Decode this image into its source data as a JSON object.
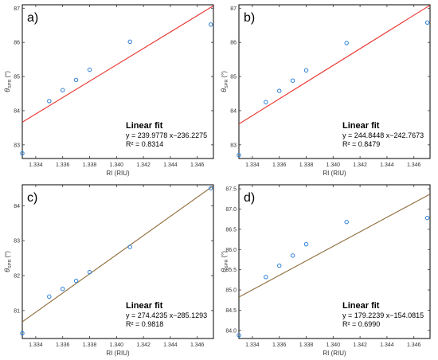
{
  "colors": {
    "point": "#2a7fd4",
    "frame": "#000000",
    "tick": "#333333"
  },
  "chart_data": [
    {
      "type": "scatter",
      "panel_label": "a)",
      "xlabel": "RI (RIU)",
      "ylabel": {
        "theta": "θ",
        "sub": "SPR",
        "unit": "(°)"
      },
      "xlim": [
        1.333,
        1.3472
      ],
      "ylim": [
        82.6,
        87.1
      ],
      "xticks": [
        "1.334",
        "1.336",
        "1.338",
        "1.340",
        "1.342",
        "1.344",
        "1.346"
      ],
      "xtick_values": [
        1.334,
        1.336,
        1.338,
        1.34,
        1.342,
        1.344,
        1.346
      ],
      "yticks": [
        "83",
        "84",
        "85",
        "86",
        "87"
      ],
      "ytick_values": [
        83,
        84,
        85,
        86,
        87
      ],
      "x": [
        1.333,
        1.335,
        1.336,
        1.337,
        1.338,
        1.341,
        1.347
      ],
      "y": [
        82.75,
        84.28,
        84.6,
        84.9,
        85.2,
        86.02,
        86.52
      ],
      "fit": {
        "slope": 239.9778,
        "intercept": -236.2275,
        "color": "#e8322c"
      },
      "legend_title": "Linear fit",
      "equation": "y = 239.9778 x−236.2275",
      "r2": "R² = 0.8314"
    },
    {
      "type": "scatter",
      "panel_label": "b)",
      "xlabel": "RI (RIU)",
      "ylabel": {
        "theta": "θ",
        "sub": "SPR",
        "unit": "(°)"
      },
      "xlim": [
        1.333,
        1.3472
      ],
      "ylim": [
        82.6,
        87.1
      ],
      "xticks": [
        "1.334",
        "1.336",
        "1.338",
        "1.340",
        "1.342",
        "1.344",
        "1.346"
      ],
      "xtick_values": [
        1.334,
        1.336,
        1.338,
        1.34,
        1.342,
        1.344,
        1.346
      ],
      "yticks": [
        "83",
        "84",
        "85",
        "86",
        "87"
      ],
      "ytick_values": [
        83,
        84,
        85,
        86,
        87
      ],
      "x": [
        1.333,
        1.335,
        1.336,
        1.337,
        1.338,
        1.341,
        1.347
      ],
      "y": [
        82.7,
        84.25,
        84.58,
        84.88,
        85.18,
        85.98,
        86.58
      ],
      "fit": {
        "slope": 244.8448,
        "intercept": -242.7673,
        "color": "#e8322c"
      },
      "legend_title": "Linear fit",
      "equation": "y = 244.8448 x−242.7673",
      "r2": "R² = 0.8479"
    },
    {
      "type": "scatter",
      "panel_label": "c)",
      "xlabel": "RI (RIU)",
      "ylabel": {
        "theta": "θ",
        "sub": "SPR",
        "unit": "(°)"
      },
      "xlim": [
        1.333,
        1.3472
      ],
      "ylim": [
        80.2,
        84.6
      ],
      "xticks": [
        "1.334",
        "1.336",
        "1.338",
        "1.340",
        "1.342",
        "1.344",
        "1.346"
      ],
      "xtick_values": [
        1.334,
        1.336,
        1.338,
        1.34,
        1.342,
        1.344,
        1.346
      ],
      "yticks": [
        "81",
        "82",
        "83",
        "84"
      ],
      "ytick_values": [
        81,
        82,
        83,
        84
      ],
      "x": [
        1.333,
        1.335,
        1.336,
        1.337,
        1.338,
        1.341,
        1.347
      ],
      "y": [
        80.35,
        81.4,
        81.62,
        81.85,
        82.1,
        82.82,
        84.5
      ],
      "fit": {
        "slope": 274.4235,
        "intercept": -285.1293,
        "color": "#8f6b3a"
      },
      "legend_title": "Linear fit",
      "equation": "y = 274.4235 x−285.1293",
      "r2": "R² = 0.9818"
    },
    {
      "type": "scatter",
      "panel_label": "d)",
      "xlabel": "RI (RIU)",
      "ylabel": {
        "theta": "θ",
        "sub": "SPR",
        "unit": "(°)"
      },
      "xlim": [
        1.333,
        1.3472
      ],
      "ylim": [
        83.8,
        87.6
      ],
      "xticks": [
        "1.334",
        "1.336",
        "1.338",
        "1.340",
        "1.342",
        "1.344",
        "1.346"
      ],
      "xtick_values": [
        1.334,
        1.336,
        1.338,
        1.34,
        1.342,
        1.344,
        1.346
      ],
      "yticks": [
        "84.0",
        "84.5",
        "85.0",
        "85.5",
        "86.0",
        "86.5",
        "87.0",
        "87.5"
      ],
      "ytick_values": [
        84.0,
        84.5,
        85.0,
        85.5,
        86.0,
        86.5,
        87.0,
        87.5
      ],
      "x": [
        1.333,
        1.335,
        1.336,
        1.337,
        1.338,
        1.341,
        1.347
      ],
      "y": [
        83.88,
        85.32,
        85.6,
        85.85,
        86.13,
        86.68,
        86.78
      ],
      "fit": {
        "slope": 179.2239,
        "intercept": -154.0815,
        "color": "#8f6b3a"
      },
      "legend_title": "Linear fit",
      "equation": "y = 179.2239 x−154.0815",
      "r2": "R² = 0.6990"
    }
  ]
}
